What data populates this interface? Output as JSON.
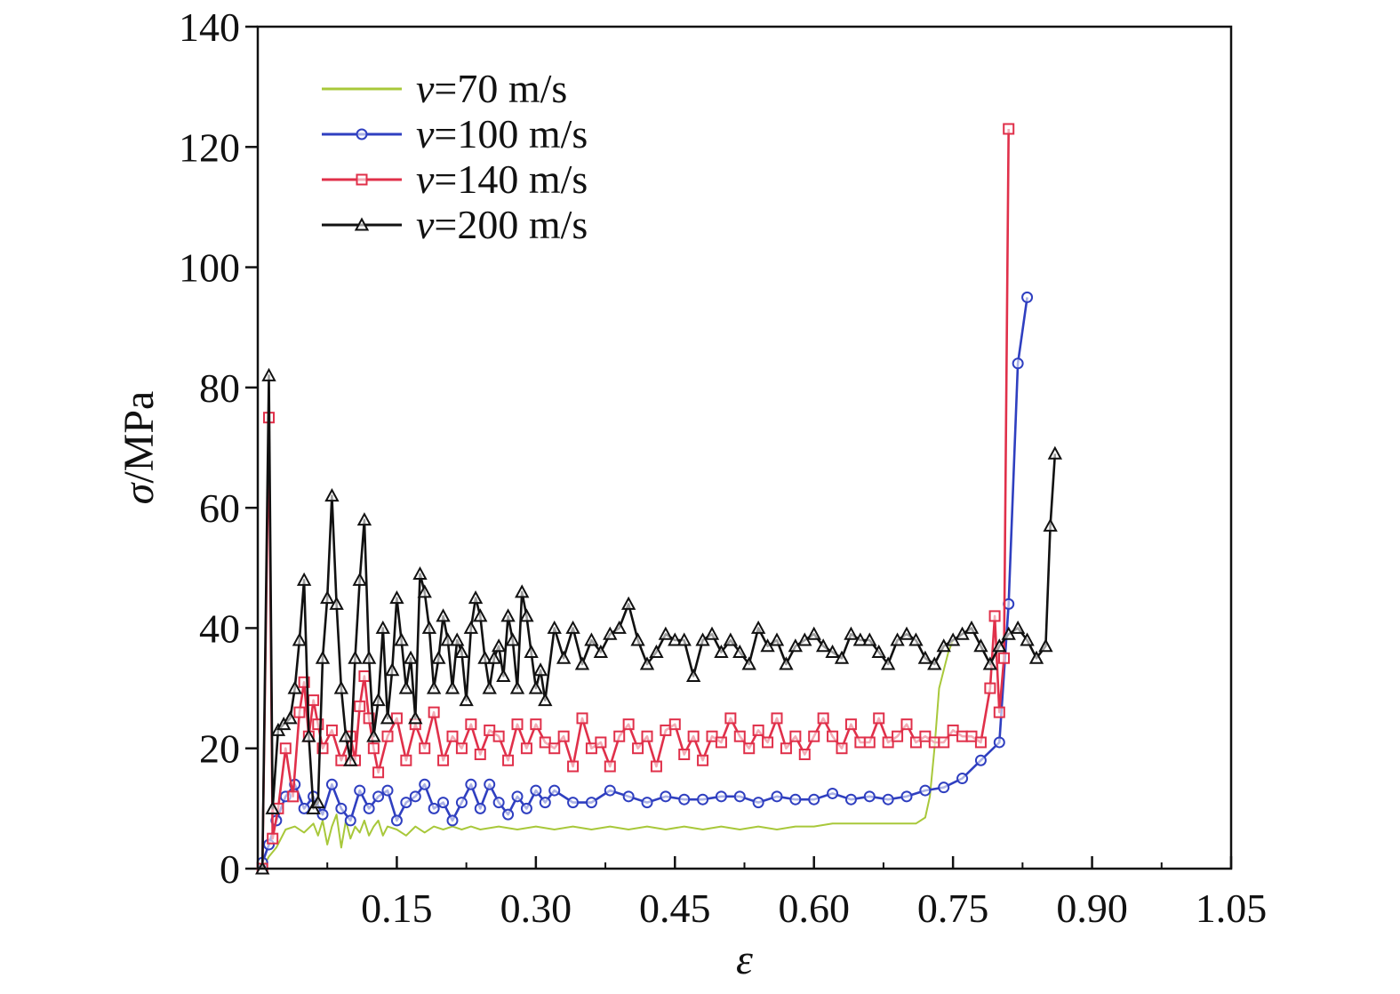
{
  "chart_data": {
    "type": "line",
    "xlabel": "ε",
    "ylabel_symbol": "σ",
    "ylabel_unit": "/MPa",
    "xlim": [
      0,
      1.05
    ],
    "ylim": [
      0,
      140
    ],
    "x_ticks": [
      "0.15",
      "0.30",
      "0.45",
      "0.60",
      "0.75",
      "0.90",
      "1.05"
    ],
    "y_ticks": [
      "0",
      "20",
      "40",
      "60",
      "80",
      "100",
      "120",
      "140"
    ],
    "legend_position": "top-left",
    "series": [
      {
        "name_symbol": "v",
        "name_rest": "=70 m/s",
        "color": "#a8c83a",
        "marker": "none",
        "x": [
          0.005,
          0.012,
          0.02,
          0.03,
          0.04,
          0.05,
          0.06,
          0.065,
          0.07,
          0.075,
          0.08,
          0.085,
          0.09,
          0.095,
          0.1,
          0.105,
          0.11,
          0.115,
          0.12,
          0.125,
          0.13,
          0.135,
          0.14,
          0.15,
          0.16,
          0.17,
          0.18,
          0.19,
          0.2,
          0.21,
          0.22,
          0.23,
          0.24,
          0.26,
          0.28,
          0.3,
          0.32,
          0.34,
          0.36,
          0.38,
          0.4,
          0.42,
          0.44,
          0.46,
          0.48,
          0.5,
          0.52,
          0.54,
          0.56,
          0.58,
          0.6,
          0.62,
          0.65,
          0.68,
          0.71,
          0.72,
          0.725,
          0.73,
          0.735,
          0.74,
          0.745,
          0.75
        ],
        "y": [
          0,
          2,
          3.5,
          6.5,
          7,
          6,
          7.5,
          5.5,
          8,
          4,
          7,
          9,
          3.5,
          8,
          5,
          7,
          6,
          8,
          5.5,
          7,
          8,
          5.5,
          7,
          6.5,
          5.5,
          7,
          6,
          7,
          6.5,
          7,
          6.5,
          7,
          6.5,
          7,
          6.5,
          7,
          6.5,
          7,
          6.5,
          7,
          6.5,
          7,
          6.5,
          7,
          6.5,
          7,
          6.5,
          7,
          6.5,
          7,
          7,
          7.5,
          7.5,
          7.5,
          7.5,
          8.5,
          12,
          20,
          30,
          33,
          36,
          38
        ]
      },
      {
        "name_symbol": "v",
        "name_rest": "=100 m/s",
        "color": "#2f3fc0",
        "marker": "circle",
        "x": [
          0.005,
          0.012,
          0.02,
          0.03,
          0.04,
          0.05,
          0.06,
          0.07,
          0.08,
          0.09,
          0.1,
          0.11,
          0.12,
          0.13,
          0.14,
          0.15,
          0.16,
          0.17,
          0.18,
          0.19,
          0.2,
          0.21,
          0.22,
          0.23,
          0.24,
          0.25,
          0.26,
          0.27,
          0.28,
          0.29,
          0.3,
          0.31,
          0.32,
          0.34,
          0.36,
          0.38,
          0.4,
          0.42,
          0.44,
          0.46,
          0.48,
          0.5,
          0.52,
          0.54,
          0.56,
          0.58,
          0.6,
          0.62,
          0.64,
          0.66,
          0.68,
          0.7,
          0.72,
          0.74,
          0.76,
          0.78,
          0.8,
          0.81,
          0.82,
          0.83
        ],
        "y": [
          1,
          4,
          8,
          12,
          14,
          10,
          12,
          9,
          14,
          10,
          8,
          13,
          10,
          12,
          13,
          8,
          11,
          12,
          14,
          10,
          11,
          8,
          11,
          14,
          10,
          14,
          11,
          9,
          12,
          10,
          13,
          11,
          13,
          11,
          11,
          13,
          12,
          11,
          12,
          11.5,
          11.5,
          12,
          12,
          11,
          12,
          11.5,
          11.5,
          12.5,
          11.5,
          12,
          11.5,
          12,
          13,
          13.5,
          15,
          18,
          21,
          44,
          84,
          95
        ]
      },
      {
        "name_symbol": "v",
        "name_rest": "=140 m/s",
        "color": "#e0304a",
        "marker": "square",
        "x": [
          0.005,
          0.012,
          0.016,
          0.022,
          0.03,
          0.038,
          0.045,
          0.05,
          0.055,
          0.06,
          0.065,
          0.07,
          0.08,
          0.09,
          0.1,
          0.105,
          0.11,
          0.115,
          0.12,
          0.125,
          0.13,
          0.14,
          0.15,
          0.16,
          0.17,
          0.18,
          0.19,
          0.2,
          0.21,
          0.22,
          0.23,
          0.24,
          0.25,
          0.26,
          0.27,
          0.28,
          0.29,
          0.3,
          0.31,
          0.32,
          0.33,
          0.34,
          0.35,
          0.36,
          0.37,
          0.38,
          0.39,
          0.4,
          0.41,
          0.42,
          0.43,
          0.44,
          0.45,
          0.46,
          0.47,
          0.48,
          0.49,
          0.5,
          0.51,
          0.52,
          0.53,
          0.54,
          0.55,
          0.56,
          0.57,
          0.58,
          0.59,
          0.6,
          0.61,
          0.62,
          0.63,
          0.64,
          0.65,
          0.66,
          0.67,
          0.68,
          0.69,
          0.7,
          0.71,
          0.72,
          0.73,
          0.74,
          0.75,
          0.76,
          0.77,
          0.78,
          0.79,
          0.795,
          0.8,
          0.805,
          0.81
        ],
        "y": [
          0,
          75,
          5,
          10,
          20,
          12,
          26,
          31,
          22,
          28,
          24,
          20,
          23,
          18,
          22,
          18,
          27,
          32,
          25,
          20,
          16,
          22,
          25,
          18,
          24,
          20,
          26,
          18,
          22,
          20,
          24,
          19,
          23,
          22,
          18,
          24,
          20,
          24,
          21,
          20,
          22,
          17,
          25,
          20,
          21,
          17,
          22,
          24,
          20,
          22,
          17,
          23,
          24,
          19,
          22,
          18,
          22,
          21,
          25,
          22,
          20,
          23,
          21,
          25,
          20,
          22,
          19,
          22,
          25,
          22,
          20,
          24,
          21,
          21,
          25,
          21,
          22,
          24,
          21,
          22,
          21,
          21,
          23,
          22,
          22,
          21,
          30,
          42,
          26,
          35,
          123
        ]
      },
      {
        "name_symbol": "v",
        "name_rest": "=200 m/s",
        "color": "#111111",
        "marker": "triangle",
        "x": [
          0.005,
          0.012,
          0.016,
          0.022,
          0.028,
          0.035,
          0.04,
          0.045,
          0.05,
          0.055,
          0.06,
          0.065,
          0.07,
          0.075,
          0.08,
          0.085,
          0.09,
          0.095,
          0.1,
          0.105,
          0.11,
          0.115,
          0.12,
          0.125,
          0.13,
          0.135,
          0.14,
          0.145,
          0.15,
          0.155,
          0.16,
          0.165,
          0.17,
          0.175,
          0.18,
          0.185,
          0.19,
          0.195,
          0.2,
          0.205,
          0.21,
          0.215,
          0.22,
          0.225,
          0.23,
          0.235,
          0.24,
          0.245,
          0.25,
          0.255,
          0.26,
          0.265,
          0.27,
          0.275,
          0.28,
          0.285,
          0.29,
          0.295,
          0.3,
          0.305,
          0.31,
          0.32,
          0.33,
          0.34,
          0.35,
          0.36,
          0.37,
          0.38,
          0.39,
          0.4,
          0.41,
          0.42,
          0.43,
          0.44,
          0.45,
          0.46,
          0.47,
          0.48,
          0.49,
          0.5,
          0.51,
          0.52,
          0.53,
          0.54,
          0.55,
          0.56,
          0.57,
          0.58,
          0.59,
          0.6,
          0.61,
          0.62,
          0.63,
          0.64,
          0.65,
          0.66,
          0.67,
          0.68,
          0.69,
          0.7,
          0.71,
          0.72,
          0.73,
          0.74,
          0.75,
          0.76,
          0.77,
          0.78,
          0.79,
          0.8,
          0.81,
          0.82,
          0.83,
          0.84,
          0.85,
          0.855,
          0.86
        ],
        "y": [
          0,
          82,
          10,
          23,
          24,
          25,
          30,
          38,
          48,
          22,
          10,
          11,
          35,
          45,
          62,
          44,
          30,
          22,
          18,
          35,
          48,
          58,
          35,
          22,
          28,
          40,
          25,
          33,
          45,
          38,
          30,
          35,
          25,
          49,
          46,
          40,
          30,
          35,
          42,
          38,
          30,
          38,
          36,
          28,
          40,
          45,
          42,
          35,
          30,
          35,
          37,
          32,
          42,
          38,
          30,
          46,
          42,
          36,
          30,
          33,
          28,
          40,
          35,
          40,
          34,
          38,
          36,
          39,
          40,
          44,
          38,
          34,
          36,
          39,
          38,
          38,
          32,
          38,
          39,
          36,
          38,
          36,
          34,
          40,
          37,
          38,
          34,
          37,
          38,
          39,
          37,
          36,
          35,
          39,
          38,
          38,
          36,
          34,
          38,
          39,
          38,
          35,
          34,
          37,
          38,
          39,
          40,
          37,
          34,
          37,
          39,
          40,
          38,
          35,
          37,
          57,
          69
        ]
      }
    ]
  }
}
